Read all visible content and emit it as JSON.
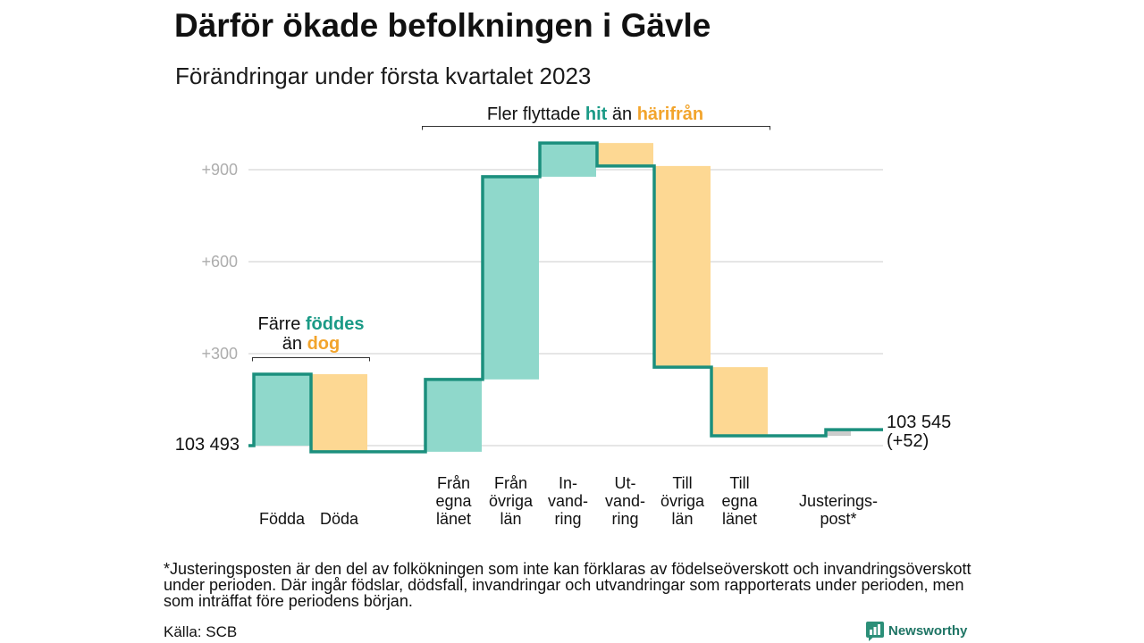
{
  "title": "Därför ökade befolkningen i Gävle",
  "subtitle": "Förändringar under första kvartalet 2023",
  "colors": {
    "step_line": "#1b8f7d",
    "highlight_teal": "#1a9a86",
    "highlight_orange": "#f2a42c",
    "gridline": "#dddddd",
    "tick_label": "#adadad",
    "logo_icon": "#2b8f78",
    "logo_text": "#1f7565"
  },
  "annotations": {
    "migration": [
      "Fler flyttade",
      "hit",
      "än",
      "härifrån"
    ],
    "births": [
      "Färre",
      "föddes",
      "än",
      "dog"
    ]
  },
  "chart_data": {
    "type": "bar",
    "waterfall": true,
    "start_label": "103 493",
    "end_label": "103 545",
    "end_change_label": "(+52)",
    "categories": [
      [
        "Födda"
      ],
      [
        "Döda"
      ],
      [],
      [
        "Från",
        "egna",
        "länet"
      ],
      [
        "Från",
        "övriga",
        "län"
      ],
      [
        "In-",
        "vand-",
        "ring"
      ],
      [
        "Ut-",
        "vand-",
        "ring"
      ],
      [
        "Till",
        "övriga",
        "län"
      ],
      [
        "Till",
        "egna",
        "länet"
      ],
      [],
      [
        "Justerings-",
        "post*"
      ]
    ],
    "values": [
      233,
      -253,
      null,
      236,
      661,
      110,
      -75,
      -656,
      -224,
      null,
      20
    ],
    "bar_colors": [
      "#8fd8cb",
      "#fdd893",
      null,
      "#8fd8cb",
      "#8fd8cb",
      "#8fd8cb",
      "#fdd893",
      "#fdd893",
      "#fdd893",
      null,
      "#cccccc"
    ],
    "yticks": [
      {
        "value": 300,
        "label": "+300"
      },
      {
        "value": 600,
        "label": "+600"
      },
      {
        "value": 900,
        "label": "+900"
      }
    ],
    "gridlines": [
      0,
      300,
      600,
      900
    ],
    "ylim": [
      -50,
      1000
    ],
    "grid": true
  },
  "footnote": "*Justeringsposten är den del av folkökningen som inte kan förklaras av födelseöverskott och invandringsöverskott under perioden. Där ingår födslar, dödsfall, invandringar och utvandringar som rapporterats under perioden, men som inträffat före periodens början.",
  "source": "Källa: SCB",
  "logo": {
    "text": "Newsworthy",
    "icon": "bar-chart-speech-icon"
  }
}
